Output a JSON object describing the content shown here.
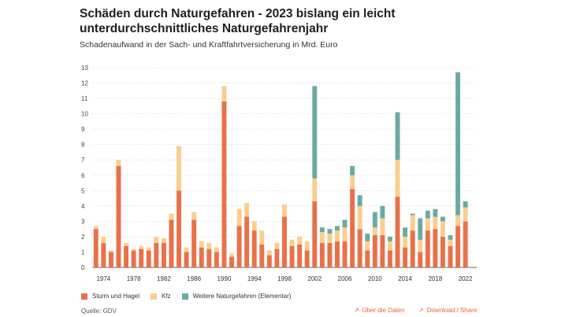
{
  "header": {
    "title": "Schäden durch Naturgefahren - 2023 bislang ein leicht unterdurchschnittliches Naturgefahrenjahr",
    "subtitle": "Schadenaufwand in der Sach- und Kraftfahrtversicherung in Mrd. Euro"
  },
  "footer": {
    "source": "Quelle: GDV",
    "data_link": "Über die Daten",
    "share_link": "Download / Share",
    "link_arrow": "↗"
  },
  "colors": {
    "sturm": "#e8714a",
    "kfz": "#f8cf8f",
    "elementar": "#6aaaa5",
    "grid": "#d9d9d9",
    "axis": "#333333"
  },
  "chart_data": {
    "type": "bar",
    "stacked": true,
    "title": "Schäden durch Naturgefahren - 2023 bislang ein leicht unterdurchschnittliches Naturgefahrenjahr",
    "ylabel": "Schadenaufwand in Mrd. Euro",
    "ylim": [
      0,
      13
    ],
    "yticks": [
      0,
      1,
      2,
      3,
      4,
      5,
      6,
      7,
      8,
      9,
      10,
      11,
      12,
      13
    ],
    "x_tick_labels": [
      "1974",
      "1978",
      "1982",
      "1986",
      "1990",
      "1994",
      "1998",
      "2002",
      "2006",
      "2010",
      "2014",
      "2018",
      "2022"
    ],
    "categories": [
      1973,
      1974,
      1975,
      1976,
      1977,
      1978,
      1979,
      1980,
      1981,
      1982,
      1983,
      1984,
      1985,
      1986,
      1987,
      1988,
      1989,
      1990,
      1991,
      1992,
      1993,
      1994,
      1995,
      1996,
      1997,
      1998,
      1999,
      2000,
      2001,
      2002,
      2003,
      2004,
      2005,
      2006,
      2007,
      2008,
      2009,
      2010,
      2011,
      2012,
      2013,
      2014,
      2015,
      2016,
      2017,
      2018,
      2019,
      2020,
      2021,
      2022,
      2023
    ],
    "series": [
      {
        "name": "Sturm und Hagel",
        "values": [
          2.5,
          1.6,
          1.0,
          6.6,
          1.4,
          1.1,
          1.2,
          1.1,
          1.6,
          1.6,
          3.1,
          5.0,
          1.0,
          3.1,
          1.3,
          1.2,
          1.0,
          10.8,
          0.7,
          2.7,
          3.3,
          2.4,
          1.5,
          0.8,
          1.2,
          3.3,
          1.4,
          1.5,
          1.1,
          4.3,
          1.6,
          1.6,
          1.7,
          1.7,
          5.1,
          2.5,
          1.1,
          2.1,
          2.1,
          1.1,
          4.6,
          1.3,
          2.4,
          1.0,
          2.4,
          2.5,
          2.0,
          1.4,
          2.7,
          3.0,
          null
        ]
      },
      {
        "name": "Kfz",
        "values": [
          0.2,
          0.4,
          0.1,
          0.4,
          0.2,
          0.1,
          0.2,
          0.2,
          0.4,
          0.3,
          0.4,
          2.9,
          0.3,
          0.5,
          0.4,
          0.4,
          0.3,
          1.0,
          0.2,
          1.1,
          0.9,
          0.6,
          0.9,
          0.3,
          0.4,
          0.8,
          0.4,
          0.5,
          0.6,
          1.5,
          0.7,
          0.6,
          0.7,
          0.9,
          0.9,
          1.5,
          0.6,
          0.5,
          1.1,
          0.6,
          2.4,
          0.7,
          1.0,
          0.8,
          0.8,
          0.8,
          1.0,
          0.4,
          0.7,
          0.9,
          null
        ]
      },
      {
        "name": "Weitere Naturgefahren (Elementar)",
        "values": [
          0,
          0,
          0,
          0,
          0,
          0,
          0,
          0,
          0,
          0,
          0,
          0,
          0,
          0,
          0,
          0,
          0,
          0,
          0,
          0,
          0,
          0,
          0,
          0,
          0,
          0,
          0,
          0,
          0,
          6.0,
          0.3,
          0.3,
          0.3,
          0.5,
          0.6,
          0.7,
          0.5,
          1.0,
          0.8,
          0.3,
          3.1,
          0.6,
          0.1,
          1.4,
          0.5,
          0.5,
          0.3,
          0.3,
          9.3,
          0.4,
          null
        ]
      }
    ],
    "legend": [
      "Sturm und Hagel",
      "Kfz",
      "Weitere Naturgefahren (Elementar)"
    ],
    "grid": true,
    "legend_position": "bottom-left"
  }
}
